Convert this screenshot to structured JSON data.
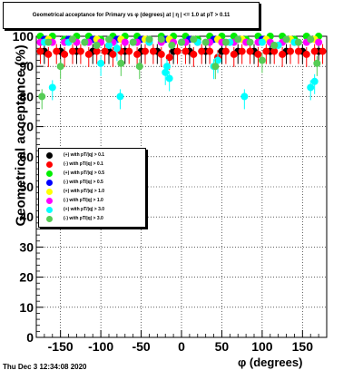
{
  "chart_data": {
    "type": "scatter",
    "title": "Geometrical acceptance for Primary vs φ (degrees) at | η | <= 1.0 at pT > 0.11",
    "xlabel": "φ (degrees)",
    "ylabel": "Geometrical acceptance (%)",
    "xlim": [
      -180,
      180
    ],
    "ylim": [
      0,
      100
    ],
    "xticks": [
      "-150",
      "-100",
      "-50",
      "0",
      "50",
      "100",
      "150"
    ],
    "yticks": [
      "0",
      "10",
      "20",
      "30",
      "40",
      "50",
      "60",
      "70",
      "80",
      "90",
      "100"
    ],
    "grid": true,
    "legend_position": "center-left",
    "series": [
      {
        "name": "(+) with pT/|q| > 0.1",
        "color": "#000000",
        "x": [
          -170,
          -150,
          -130,
          -110,
          -90,
          -70,
          -50,
          -30,
          -10,
          10,
          30,
          50,
          70,
          90,
          110,
          130,
          150,
          170
        ],
        "y": [
          95,
          95,
          95,
          95,
          95,
          95,
          95,
          95,
          95,
          95,
          95,
          95,
          95,
          95,
          95,
          95,
          95,
          95
        ]
      },
      {
        "name": "(-) with pT/|q| > 0.1",
        "color": "#ff0000",
        "x": [
          -175,
          -165,
          -155,
          -145,
          -135,
          -125,
          -115,
          -105,
          -95,
          -85,
          -75,
          -65,
          -55,
          -45,
          -35,
          -25,
          -15,
          -5,
          5,
          15,
          25,
          35,
          45,
          55,
          65,
          75,
          85,
          95,
          105,
          115,
          125,
          135,
          145,
          155,
          165,
          175
        ],
        "y": [
          95,
          94,
          95,
          94,
          95,
          95,
          94,
          95,
          95,
          94,
          95,
          95,
          94,
          95,
          95,
          94,
          93,
          95,
          95,
          94,
          95,
          95,
          93,
          95,
          94,
          95,
          95,
          94,
          95,
          95,
          94,
          95,
          95,
          94,
          95,
          95
        ]
      },
      {
        "name": "(+) with pT/|q| > 0.5",
        "color": "#00ee00",
        "x": [
          -175,
          -160,
          -145,
          -130,
          -115,
          -100,
          -85,
          -70,
          -55,
          -40,
          -25,
          -10,
          5,
          20,
          35,
          50,
          65,
          80,
          95,
          110,
          125,
          140,
          155,
          170
        ],
        "y": [
          100,
          100,
          99,
          100,
          100,
          99,
          100,
          100,
          100,
          99,
          100,
          100,
          100,
          99,
          100,
          100,
          100,
          99,
          100,
          100,
          100,
          99,
          100,
          100
        ]
      },
      {
        "name": "(-) with pT/|q| > 0.5",
        "color": "#0000ff",
        "x": [
          -170,
          -140,
          -110,
          -80,
          -50,
          -20,
          10,
          40,
          70,
          100,
          130,
          160
        ],
        "y": [
          99,
          99,
          99,
          99,
          99,
          99,
          99,
          99,
          99,
          99,
          99,
          99
        ]
      },
      {
        "name": "(+) with pT/|q| > 1.0",
        "color": "#ffff00",
        "x": [
          -165,
          -135,
          -105,
          -75,
          -45,
          -15,
          15,
          45,
          75,
          105,
          135,
          165
        ],
        "y": [
          99,
          99,
          99,
          99,
          99,
          99,
          99,
          99,
          99,
          99,
          99,
          99
        ]
      },
      {
        "name": "(-) with pT/|q| > 1.0",
        "color": "#ff00ff",
        "x": [
          -175,
          -160,
          -145,
          -130,
          -115,
          -100,
          -85,
          -70,
          -55,
          -40,
          -25,
          -10,
          5,
          20,
          35,
          50,
          65,
          80,
          95,
          110,
          125,
          140,
          155,
          170
        ],
        "y": [
          98,
          98,
          98,
          98,
          98,
          98,
          98,
          98,
          98,
          98,
          98,
          98,
          98,
          98,
          98,
          98,
          98,
          98,
          98,
          98,
          98,
          98,
          98,
          98
        ]
      },
      {
        "name": "(+) with pT/|q| > 3.0",
        "color": "#00ffff",
        "x": [
          -170,
          -160,
          -140,
          -120,
          -100,
          -90,
          -80,
          -76,
          -60,
          -40,
          -20,
          -18,
          -15,
          0,
          20,
          40,
          45,
          60,
          78,
          100,
          120,
          140,
          160,
          165
        ],
        "y": [
          98,
          83,
          98,
          98,
          91,
          97,
          96,
          80,
          98,
          98,
          88,
          90,
          86,
          98,
          98,
          90,
          92,
          98,
          80,
          98,
          97,
          98,
          83,
          85
        ]
      },
      {
        "name": "(-) with pT/|q| > 3.0",
        "color": "#55cc55",
        "x": [
          -173,
          -165,
          -150,
          -135,
          -120,
          -105,
          -90,
          -75,
          -60,
          -52,
          -40,
          -25,
          -12,
          0,
          15,
          30,
          42,
          55,
          70,
          85,
          100,
          115,
          130,
          145,
          160,
          168
        ],
        "y": [
          80,
          98,
          90,
          99,
          98,
          97,
          99,
          91,
          98,
          90,
          99,
          99,
          97,
          98,
          99,
          98,
          90,
          98,
          99,
          98,
          92,
          97,
          99,
          98,
          99,
          91
        ]
      }
    ]
  },
  "footer": {
    "timestamp": "Thu Dec  3 12:34:08 2020"
  }
}
